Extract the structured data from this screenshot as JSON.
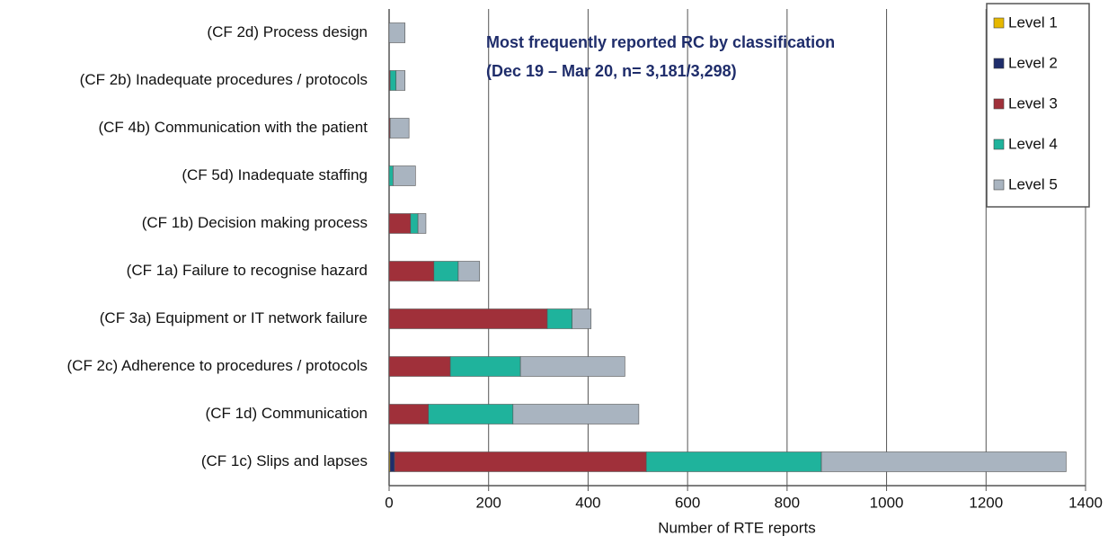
{
  "chart_data": {
    "type": "stacked_bar_horizontal",
    "title": [
      "Most frequently reported RC by classification",
      "(Dec 19 – Mar 20, n= 3,181/3,298)"
    ],
    "x_label": "Number of RTE reports",
    "categories": [
      "(CF 2d) Process design",
      "(CF 2b) Inadequate procedures / protocols",
      "(CF 4b) Communication with the patient",
      "(CF 5d) Inadequate staffing",
      "(CF 1b) Decision making process",
      "(CF 1a) Failure to recognise hazard",
      "(CF 3a) Equipment or IT network failure",
      "(CF 2c) Adherence to procedures / protocols",
      "(CF 1d) Communication",
      "(CF 1c) Slips and lapses"
    ],
    "series": [
      {
        "name": "Level 1",
        "color": "#e6b800",
        "values": [
          0,
          0,
          0,
          0,
          0,
          0,
          0,
          0,
          0,
          2
        ]
      },
      {
        "name": "Level 2",
        "color": "#1f2d6b",
        "values": [
          0,
          0,
          0,
          0,
          0,
          0,
          0,
          0,
          0,
          9
        ]
      },
      {
        "name": "Level 3",
        "color": "#a0303a",
        "values": [
          0,
          2,
          2,
          0,
          43,
          90,
          318,
          123,
          79,
          506
        ]
      },
      {
        "name": "Level 4",
        "color": "#1fb39c",
        "values": [
          0,
          12,
          0,
          8,
          15,
          49,
          50,
          141,
          170,
          352
        ]
      },
      {
        "name": "Level 5",
        "color": "#a9b4c0",
        "values": [
          32,
          18,
          38,
          45,
          16,
          43,
          38,
          210,
          253,
          492
        ]
      }
    ],
    "xlim": [
      0,
      1400
    ],
    "xticks": [
      0,
      200,
      400,
      600,
      800,
      1000,
      1200,
      1400
    ],
    "grid": true,
    "legend": "top-right"
  }
}
